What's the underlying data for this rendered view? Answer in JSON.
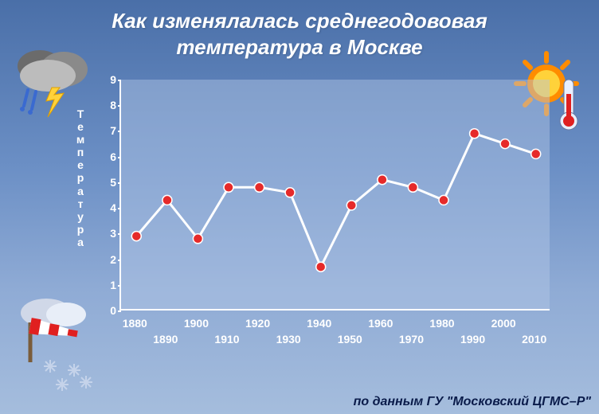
{
  "title_line1": "Как изменялалась среднегодововая",
  "title_line2": "температура в Москве",
  "credit": "по данным ГУ \"Московский ЦГМС–Р\"",
  "ylabel": "Температура",
  "chart": {
    "type": "line",
    "background_color": "rgba(180,200,230,0.45)",
    "axis_color": "#ffffff",
    "line_color": "#ffffff",
    "line_width": 3,
    "marker_color": "#e62a2a",
    "marker_stroke": "#ffffff",
    "marker_radius": 6,
    "ylim": [
      0,
      9
    ],
    "ytick_step": 1,
    "yticks": [
      0,
      1,
      2,
      3,
      4,
      5,
      6,
      7,
      8,
      9
    ],
    "xlim": [
      1875,
      2015
    ],
    "xticks_top": [
      1880,
      1900,
      1920,
      1940,
      1960,
      1980,
      2000
    ],
    "xticks_bottom": [
      1890,
      1910,
      1930,
      1950,
      1970,
      1990,
      2010
    ],
    "series": {
      "x": [
        1880,
        1890,
        1900,
        1910,
        1920,
        1930,
        1940,
        1950,
        1960,
        1970,
        1980,
        1990,
        2000,
        2010
      ],
      "y": [
        2.9,
        4.3,
        2.8,
        4.8,
        4.8,
        4.6,
        1.7,
        4.1,
        5.1,
        4.8,
        4.3,
        6.9,
        6.5,
        6.1
      ]
    },
    "title_fontsize": 26,
    "tick_fontsize": 14,
    "label_fontsize": 14
  }
}
